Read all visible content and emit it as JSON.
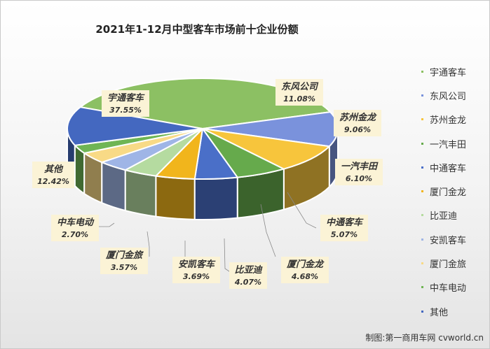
{
  "chart_data": {
    "type": "pie",
    "title": "2021年1-12月中型客车市场前十企业份额",
    "slices": [
      {
        "label": "宇通客车",
        "value": 37.55,
        "value_text": "37.55%",
        "color": "#8cc063"
      },
      {
        "label": "东风公司",
        "value": 11.08,
        "value_text": "11.08%",
        "color": "#7a92dc"
      },
      {
        "label": "苏州金龙",
        "value": 9.06,
        "value_text": "9.06%",
        "color": "#f7c53c"
      },
      {
        "label": "一汽丰田",
        "value": 6.1,
        "value_text": "6.10%",
        "color": "#66aa4c"
      },
      {
        "label": "中通客车",
        "value": 5.07,
        "value_text": "5.07%",
        "color": "#4a6fc8"
      },
      {
        "label": "厦门金龙",
        "value": 4.68,
        "value_text": "4.68%",
        "color": "#f1b51c"
      },
      {
        "label": "比亚迪",
        "value": 4.07,
        "value_text": "4.07%",
        "color": "#b5dba0"
      },
      {
        "label": "安凯客车",
        "value": 3.69,
        "value_text": "3.69%",
        "color": "#9fb5e6"
      },
      {
        "label": "厦门金旅",
        "value": 3.57,
        "value_text": "3.57%",
        "color": "#f8da86"
      },
      {
        "label": "中车电动",
        "value": 2.7,
        "value_text": "2.70%",
        "color": "#6fb554"
      },
      {
        "label": "其他",
        "value": 12.42,
        "value_text": "12.42%",
        "color": "#4468c0"
      }
    ],
    "legend_position": "right",
    "label_background": "#fbf3d6"
  },
  "credit": "制图:第一商用车网 cvworld.cn"
}
